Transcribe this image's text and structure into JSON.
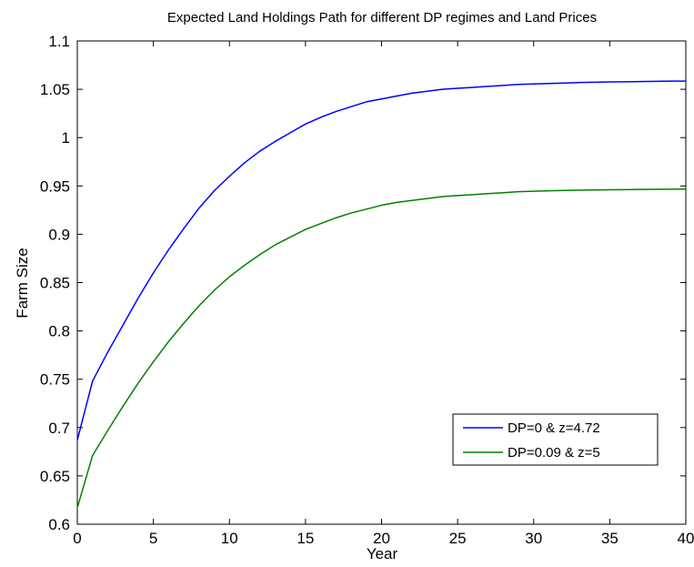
{
  "chart_data": {
    "type": "line",
    "title": "Expected Land Holdings Path for different DP regimes and Land Prices",
    "xlabel": "Year",
    "ylabel": "Farm Size",
    "xlim": [
      0,
      40
    ],
    "ylim": [
      0.6,
      1.1
    ],
    "xticks": [
      0,
      5,
      10,
      15,
      20,
      25,
      30,
      35,
      40
    ],
    "yticks": [
      0.6,
      0.65,
      0.7,
      0.75,
      0.8,
      0.85,
      0.9,
      0.95,
      1,
      1.05,
      1.1
    ],
    "xtick_labels": [
      "0",
      "5",
      "10",
      "15",
      "20",
      "25",
      "30",
      "35",
      "40"
    ],
    "ytick_labels": [
      "0.6",
      "0.65",
      "0.7",
      "0.75",
      "0.8",
      "0.85",
      "0.9",
      "0.95",
      "1",
      "1.05",
      "1.1"
    ],
    "grid": false,
    "legend_position": "bottom-right",
    "x": [
      0,
      1,
      2,
      3,
      4,
      5,
      6,
      7,
      8,
      9,
      10,
      11,
      12,
      13,
      14,
      15,
      16,
      17,
      18,
      19,
      20,
      21,
      22,
      23,
      24,
      25,
      26,
      27,
      28,
      29,
      30,
      31,
      32,
      33,
      34,
      35,
      36,
      37,
      38,
      39,
      40
    ],
    "series": [
      {
        "name": "DP=0 & z=4.72",
        "color": "#0000ff",
        "values": [
          0.687,
          0.748,
          0.778,
          0.806,
          0.834,
          0.86,
          0.884,
          0.906,
          0.927,
          0.945,
          0.96,
          0.974,
          0.986,
          0.996,
          1.005,
          1.014,
          1.021,
          1.027,
          1.032,
          1.037,
          1.04,
          1.043,
          1.046,
          1.048,
          1.05,
          1.051,
          1.052,
          1.053,
          1.054,
          1.055,
          1.0555,
          1.056,
          1.0565,
          1.057,
          1.0573,
          1.0576,
          1.0578,
          1.058,
          1.0582,
          1.0584,
          1.0585
        ]
      },
      {
        "name": "DP=0.09 & z=5",
        "color": "#008000",
        "values": [
          0.617,
          0.671,
          0.697,
          0.722,
          0.746,
          0.768,
          0.789,
          0.808,
          0.826,
          0.842,
          0.856,
          0.868,
          0.879,
          0.889,
          0.897,
          0.905,
          0.911,
          0.917,
          0.922,
          0.926,
          0.93,
          0.933,
          0.935,
          0.937,
          0.939,
          0.94,
          0.941,
          0.942,
          0.943,
          0.944,
          0.9445,
          0.945,
          0.9453,
          0.9456,
          0.9458,
          0.946,
          0.9462,
          0.9464,
          0.9465,
          0.9466,
          0.9467
        ]
      }
    ]
  }
}
